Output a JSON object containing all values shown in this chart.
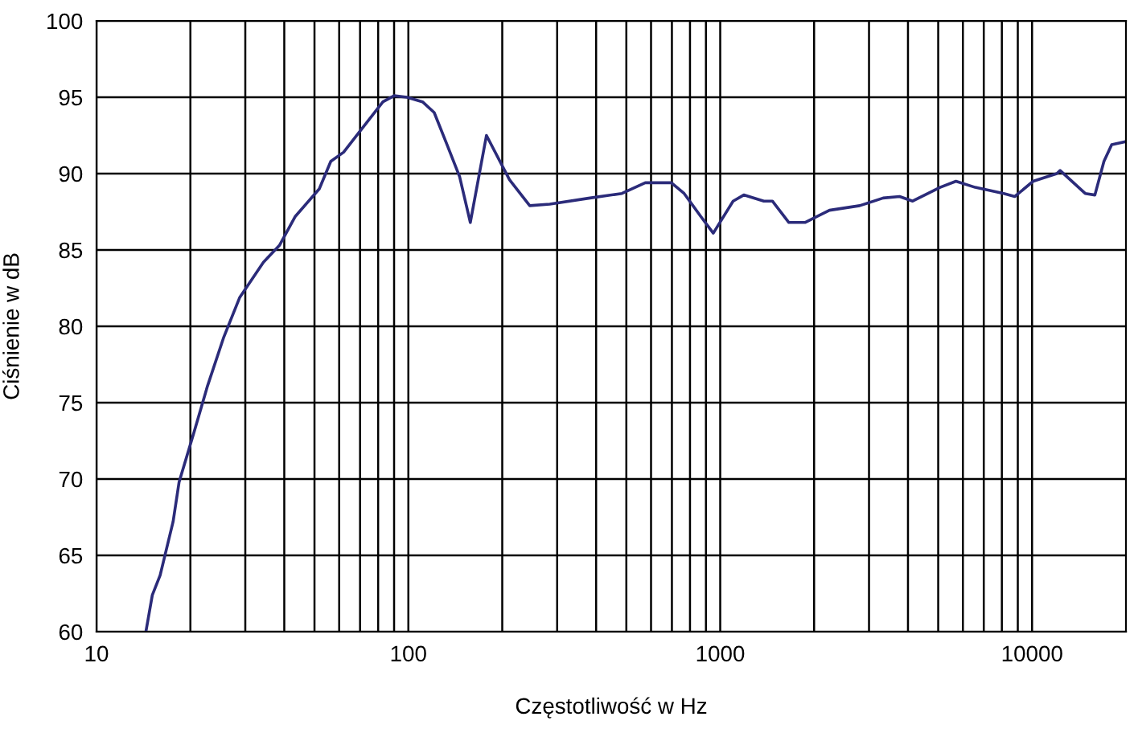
{
  "chart_data": {
    "type": "line",
    "xlabel": "Częstotliwość w Hz",
    "ylabel": "Ciśnienie w dB",
    "log": "x",
    "grid": true,
    "marker": "none",
    "line_style": "solid",
    "xlim": [
      10,
      20000
    ],
    "ylim": [
      60,
      100
    ],
    "xticks": [
      10,
      {
        "value": 20,
        "label": null
      },
      {
        "value": 30,
        "label": null
      },
      {
        "value": 40,
        "label": null
      },
      {
        "value": 50,
        "label": null
      },
      {
        "value": 60,
        "label": null
      },
      {
        "value": 70,
        "label": null
      },
      {
        "value": 80,
        "label": null
      },
      {
        "value": 90,
        "label": null
      },
      100,
      {
        "value": 200,
        "label": null
      },
      {
        "value": 300,
        "label": null
      },
      {
        "value": 400,
        "label": null
      },
      {
        "value": 500,
        "label": null
      },
      {
        "value": 600,
        "label": null
      },
      {
        "value": 700,
        "label": null
      },
      {
        "value": 800,
        "label": null
      },
      {
        "value": 900,
        "label": null
      },
      1000,
      {
        "value": 2000,
        "label": null
      },
      {
        "value": 3000,
        "label": null
      },
      {
        "value": 4000,
        "label": null
      },
      {
        "value": 5000,
        "label": null
      },
      {
        "value": 6000,
        "label": null
      },
      {
        "value": 7000,
        "label": null
      },
      {
        "value": 8000,
        "label": null
      },
      {
        "value": 9000,
        "label": null
      },
      10000
    ],
    "yticks": [
      60,
      65,
      70,
      75,
      80,
      85,
      90,
      95,
      100
    ],
    "series": [
      {
        "color": "#2b2b7a",
        "x": [
          14.4,
          15.1,
          16.0,
          17.6,
          18.4,
          20.5,
          22.7,
          25.6,
          28.8,
          34.3,
          38.6,
          43.4,
          51.8,
          56.4,
          62,
          69.5,
          82.9,
          90,
          99,
          111,
          121,
          133,
          146,
          158,
          178,
          211,
          245,
          284,
          382,
          484,
          575,
          697,
          766,
          866,
          950,
          1100,
          1190,
          1380,
          1470,
          1660,
          1870,
          2240,
          2800,
          3330,
          3760,
          4140,
          5070,
          5700,
          6570,
          8110,
          8800,
          10080,
          12000,
          12300,
          14800,
          15900,
          17000,
          18000,
          20000
        ],
        "values": [
          60,
          62.4,
          63.7,
          67.2,
          69.8,
          73,
          76.1,
          79.3,
          81.9,
          84.2,
          85.3,
          87.2,
          89,
          90.8,
          91.4,
          92.7,
          94.7,
          95.1,
          95,
          94.7,
          94,
          91.9,
          89.8,
          86.8,
          92.5,
          89.6,
          87.9,
          88,
          88.4,
          88.7,
          89.4,
          89.4,
          88.7,
          87.2,
          86.1,
          88.2,
          88.6,
          88.2,
          88.2,
          86.8,
          86.8,
          87.6,
          87.9,
          88.4,
          88.5,
          88.2,
          89.1,
          89.5,
          89.1,
          88.7,
          88.5,
          89.5,
          90,
          90.2,
          88.7,
          88.6,
          90.8,
          91.9,
          92.1
        ]
      }
    ]
  }
}
